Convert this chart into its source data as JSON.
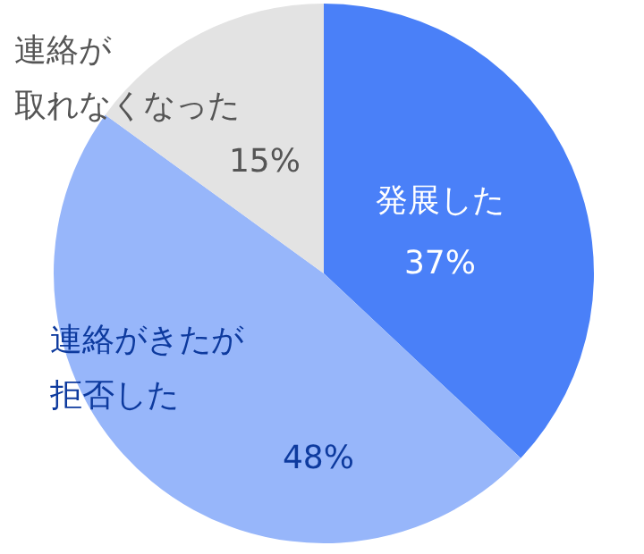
{
  "chart_data": {
    "type": "pie",
    "categories": [
      "発展した",
      "連絡がきたが拒否した",
      "連絡が取れなくなった"
    ],
    "values": [
      37,
      48,
      15
    ],
    "colors": [
      "#4a80f8",
      "#97b6fa",
      "#e3e3e3"
    ],
    "value_labels": [
      "37%",
      "48%",
      "15%"
    ]
  }
}
